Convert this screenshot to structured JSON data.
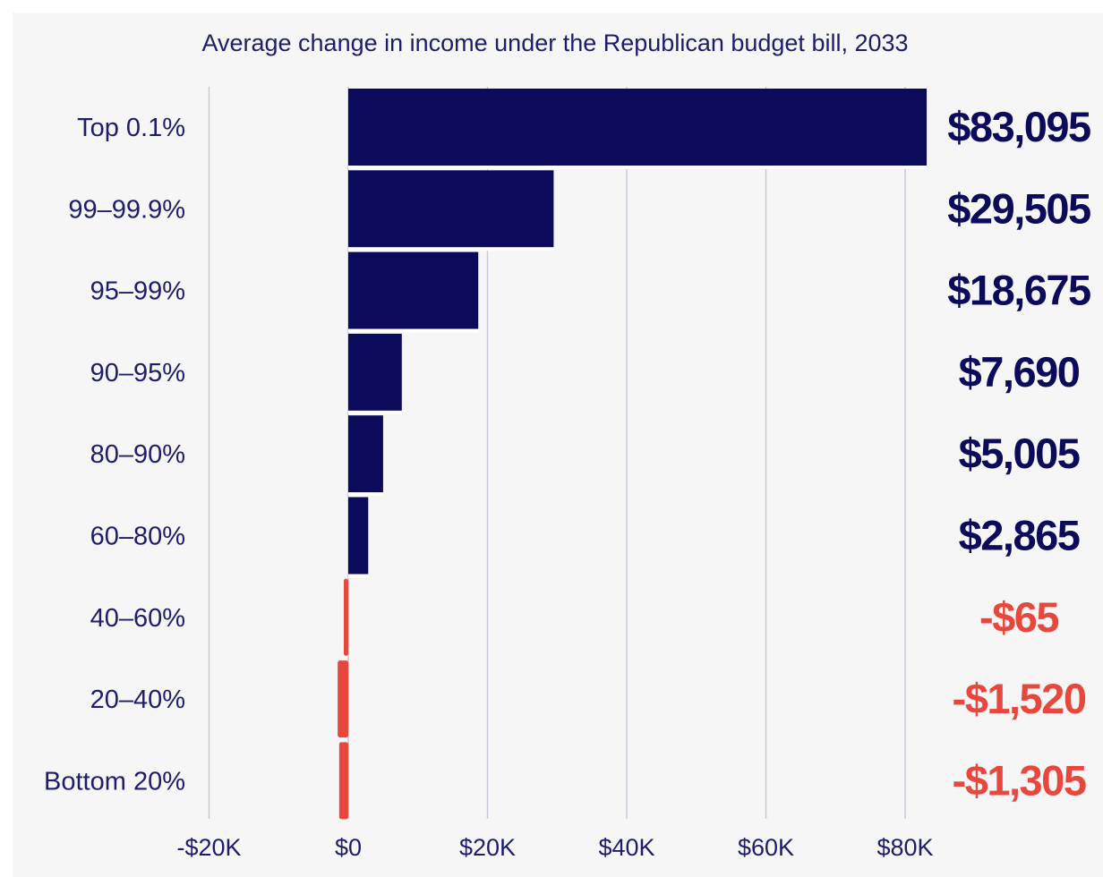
{
  "chart_data": {
    "type": "bar",
    "orientation": "horizontal",
    "title": "Average change in income under the Republican budget bill, 2033",
    "xlabel": "",
    "ylabel": "",
    "categories": [
      "Top 0.1%",
      "99–99.9%",
      "95–99%",
      "90–95%",
      "80–90%",
      "60–80%",
      "40–60%",
      "20–40%",
      "Bottom 20%"
    ],
    "values": [
      83095,
      29505,
      18675,
      7690,
      5005,
      2865,
      -65,
      -1520,
      -1305
    ],
    "value_labels": [
      "$83,095",
      "$29,505",
      "$18,675",
      "$7,690",
      "$5,005",
      "$2,865",
      "-$65",
      "-$1,520",
      "-$1,305"
    ],
    "xlim": [
      -20000,
      80000
    ],
    "xticks": [
      -20000,
      0,
      20000,
      40000,
      60000,
      80000
    ],
    "xtick_labels": [
      "-$20K",
      "$0",
      "$20K",
      "$40K",
      "$60K",
      "$80K"
    ],
    "grid": true,
    "legend": "none",
    "colors": {
      "positive": "#0c0a5a",
      "negative": "#e8473d",
      "text": "#1e1d6b",
      "grid": "#c9c9d6",
      "background": "#f6f6f6"
    }
  }
}
